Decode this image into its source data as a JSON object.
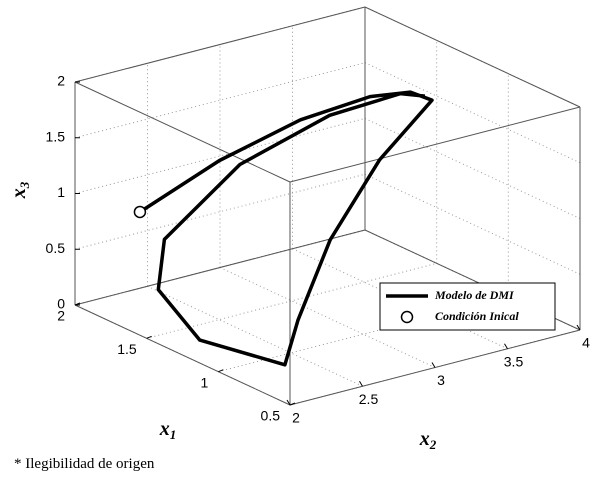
{
  "chart_data": {
    "type": "line3d",
    "xlabel": {
      "symbol": "x",
      "index": "1"
    },
    "ylabel": {
      "symbol": "x",
      "index": "2"
    },
    "zlabel": {
      "symbol": "x",
      "index": "3"
    },
    "xlim": [
      0.5,
      2
    ],
    "ylim": [
      2,
      4
    ],
    "zlim": [
      0,
      2
    ],
    "xticks": [
      0.5,
      1,
      1.5,
      2
    ],
    "yticks": [
      2,
      2.5,
      3,
      3.5,
      4
    ],
    "zticks": [
      0,
      0.5,
      1,
      1.5,
      2
    ],
    "grid": true,
    "legend": "lower right",
    "series": [
      {
        "name": "Modelo de DMI",
        "color": "#000000",
        "kind": "line",
        "x": [
          1.8,
          1.7,
          1.6,
          1.5,
          1.4,
          1.3,
          1.2,
          1.1,
          1.0,
          0.9,
          1.2,
          1.5,
          1.7,
          1.75,
          1.7,
          1.55,
          1.4
        ],
        "y": [
          2.25,
          2.7,
          3.16,
          3.54,
          3.72,
          3.77,
          3.31,
          2.87,
          2.55,
          2.36,
          2.07,
          2.08,
          2.32,
          2.89,
          3.46,
          3.8,
          3.82
        ],
        "z": [
          0.87,
          1.24,
          1.51,
          1.65,
          1.69,
          1.66,
          1.34,
          0.83,
          0.28,
          0.0,
          0.14,
          0.41,
          0.66,
          1.11,
          1.39,
          1.56,
          1.62
        ]
      },
      {
        "name": "Condición Inical",
        "color": "#ffffff",
        "kind": "marker",
        "x": [
          1.8
        ],
        "y": [
          2.25
        ],
        "z": [
          0.87
        ]
      }
    ]
  },
  "footnote": "* Ilegibilidad de origen"
}
